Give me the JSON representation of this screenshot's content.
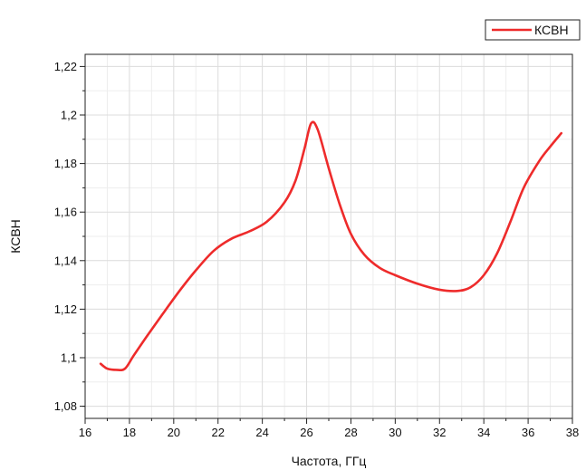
{
  "chart_data": {
    "type": "line",
    "xlabel": "Частота, ГГц",
    "ylabel": "КСВН",
    "xlim": [
      16,
      38
    ],
    "ylim": [
      1.075,
      1.225
    ],
    "x_ticks": [
      16,
      18,
      20,
      22,
      24,
      26,
      28,
      30,
      32,
      34,
      36,
      38
    ],
    "x_tick_labels": [
      "16",
      "18",
      "20",
      "22",
      "24",
      "26",
      "28",
      "30",
      "32",
      "34",
      "36",
      "38"
    ],
    "y_ticks": [
      1.08,
      1.1,
      1.12,
      1.14,
      1.16,
      1.18,
      1.2,
      1.22
    ],
    "y_tick_labels": [
      "1,08",
      "1,1",
      "1,12",
      "1,14",
      "1,16",
      "1,18",
      "1,2",
      "1,22"
    ],
    "grid": true,
    "legend_position": "top-right",
    "series": [
      {
        "name": "КСВН",
        "color": "#ee2b2b",
        "x": [
          16.7,
          17.0,
          17.4,
          17.8,
          18.2,
          18.8,
          19.5,
          20.3,
          21.0,
          21.8,
          22.6,
          23.4,
          24.2,
          25.0,
          25.5,
          25.9,
          26.2,
          26.5,
          27.0,
          27.5,
          28.0,
          28.6,
          29.3,
          30.0,
          31.0,
          32.0,
          32.8,
          33.4,
          34.0,
          34.6,
          35.2,
          35.8,
          36.5,
          37.0,
          37.5
        ],
        "y": [
          1.0975,
          1.0955,
          1.095,
          1.0955,
          1.101,
          1.109,
          1.118,
          1.128,
          1.136,
          1.144,
          1.149,
          1.152,
          1.156,
          1.164,
          1.173,
          1.186,
          1.1965,
          1.194,
          1.178,
          1.163,
          1.151,
          1.1425,
          1.137,
          1.134,
          1.1305,
          1.128,
          1.1275,
          1.129,
          1.134,
          1.143,
          1.156,
          1.17,
          1.181,
          1.187,
          1.1925
        ]
      }
    ]
  }
}
